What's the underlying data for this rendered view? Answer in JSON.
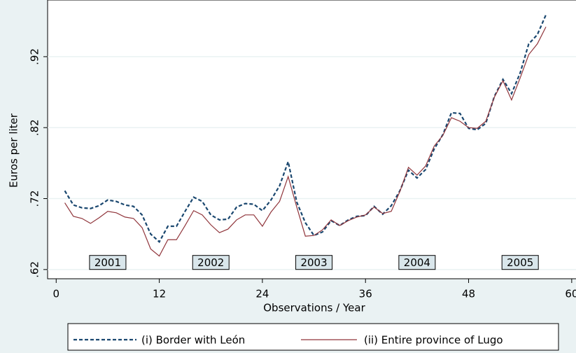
{
  "chart_data": {
    "type": "line",
    "x": [
      1,
      2,
      3,
      4,
      5,
      6,
      7,
      8,
      9,
      10,
      11,
      12,
      13,
      14,
      15,
      16,
      17,
      18,
      19,
      20,
      21,
      22,
      23,
      24,
      25,
      26,
      27,
      28,
      29,
      30,
      31,
      32,
      33,
      34,
      35,
      36,
      37,
      38,
      39,
      40,
      41,
      42,
      43,
      44,
      45,
      46,
      47,
      48,
      49,
      50,
      51,
      52,
      53,
      54,
      55,
      56,
      57
    ],
    "series": [
      {
        "name": "(i) Border with León",
        "color": "#1a476f",
        "dash": true,
        "values": [
          0.731,
          0.711,
          0.707,
          0.706,
          0.71,
          0.718,
          0.716,
          0.711,
          0.709,
          0.697,
          0.67,
          0.659,
          0.681,
          0.681,
          0.702,
          0.722,
          0.716,
          0.697,
          0.69,
          0.691,
          0.708,
          0.713,
          0.712,
          0.703,
          0.718,
          0.738,
          0.772,
          0.715,
          0.686,
          0.668,
          0.673,
          0.689,
          0.682,
          0.69,
          0.695,
          0.696,
          0.709,
          0.698,
          0.71,
          0.731,
          0.76,
          0.749,
          0.761,
          0.79,
          0.81,
          0.841,
          0.84,
          0.819,
          0.817,
          0.826,
          0.864,
          0.888,
          0.868,
          0.897,
          0.938,
          0.951,
          0.979
        ]
      },
      {
        "name": "(ii) Entire province of Lugo",
        "color": "#90353b",
        "dash": false,
        "values": [
          0.714,
          0.695,
          0.692,
          0.685,
          0.693,
          0.702,
          0.7,
          0.694,
          0.692,
          0.679,
          0.649,
          0.639,
          0.662,
          0.662,
          0.682,
          0.703,
          0.697,
          0.683,
          0.672,
          0.677,
          0.69,
          0.697,
          0.697,
          0.681,
          0.701,
          0.716,
          0.751,
          0.708,
          0.667,
          0.668,
          0.676,
          0.69,
          0.682,
          0.689,
          0.694,
          0.697,
          0.708,
          0.699,
          0.702,
          0.73,
          0.764,
          0.753,
          0.766,
          0.794,
          0.809,
          0.834,
          0.829,
          0.82,
          0.819,
          0.829,
          0.863,
          0.886,
          0.859,
          0.89,
          0.923,
          0.938,
          0.962
        ]
      }
    ],
    "xlabel": "Observations / Year",
    "ylabel": "Euros per liter",
    "xlim": [
      -1,
      60.5
    ],
    "xticks": [
      0,
      12,
      24,
      36,
      48,
      60
    ],
    "ylim": [
      0.607,
      0.99
    ],
    "yticks": [
      {
        "value": 0.62,
        "label": ".62"
      },
      {
        "value": 0.72,
        "label": ".72"
      },
      {
        "value": 0.82,
        "label": ".82"
      },
      {
        "value": 0.92,
        "label": ".92"
      }
    ],
    "grid": true,
    "annotations": [
      {
        "text": "2001",
        "x": 6,
        "y": 0.63
      },
      {
        "text": "2002",
        "x": 18,
        "y": 0.63
      },
      {
        "text": "2003",
        "x": 30,
        "y": 0.63
      },
      {
        "text": "2004",
        "x": 42,
        "y": 0.63
      },
      {
        "text": "2005",
        "x": 54,
        "y": 0.63
      }
    ]
  }
}
